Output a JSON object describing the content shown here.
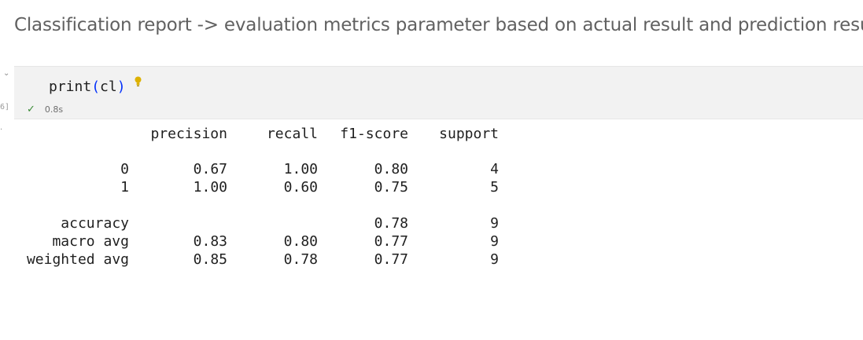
{
  "markdown": {
    "heading": "Classification report -> evaluation metrics parameter based on actual result and prediction result"
  },
  "cell": {
    "exec_count": "6]",
    "code": {
      "fn": "print",
      "open": "(",
      "arg": "cl",
      "close": ")"
    },
    "status": {
      "icon": "check-icon",
      "time": "0.8s"
    },
    "collapse_icon": "chevron-down-icon"
  },
  "report": {
    "headers": [
      "",
      "precision",
      "recall",
      "f1-score",
      "support"
    ],
    "class_rows": [
      [
        "0",
        "0.67",
        "1.00",
        "0.80",
        "4"
      ],
      [
        "1",
        "1.00",
        "0.60",
        "0.75",
        "5"
      ]
    ],
    "summary_rows": [
      [
        "accuracy",
        "",
        "",
        "0.78",
        "9"
      ],
      [
        "macro avg",
        "0.83",
        "0.80",
        "0.77",
        "9"
      ],
      [
        "weighted avg",
        "0.85",
        "0.78",
        "0.77",
        "9"
      ]
    ]
  }
}
